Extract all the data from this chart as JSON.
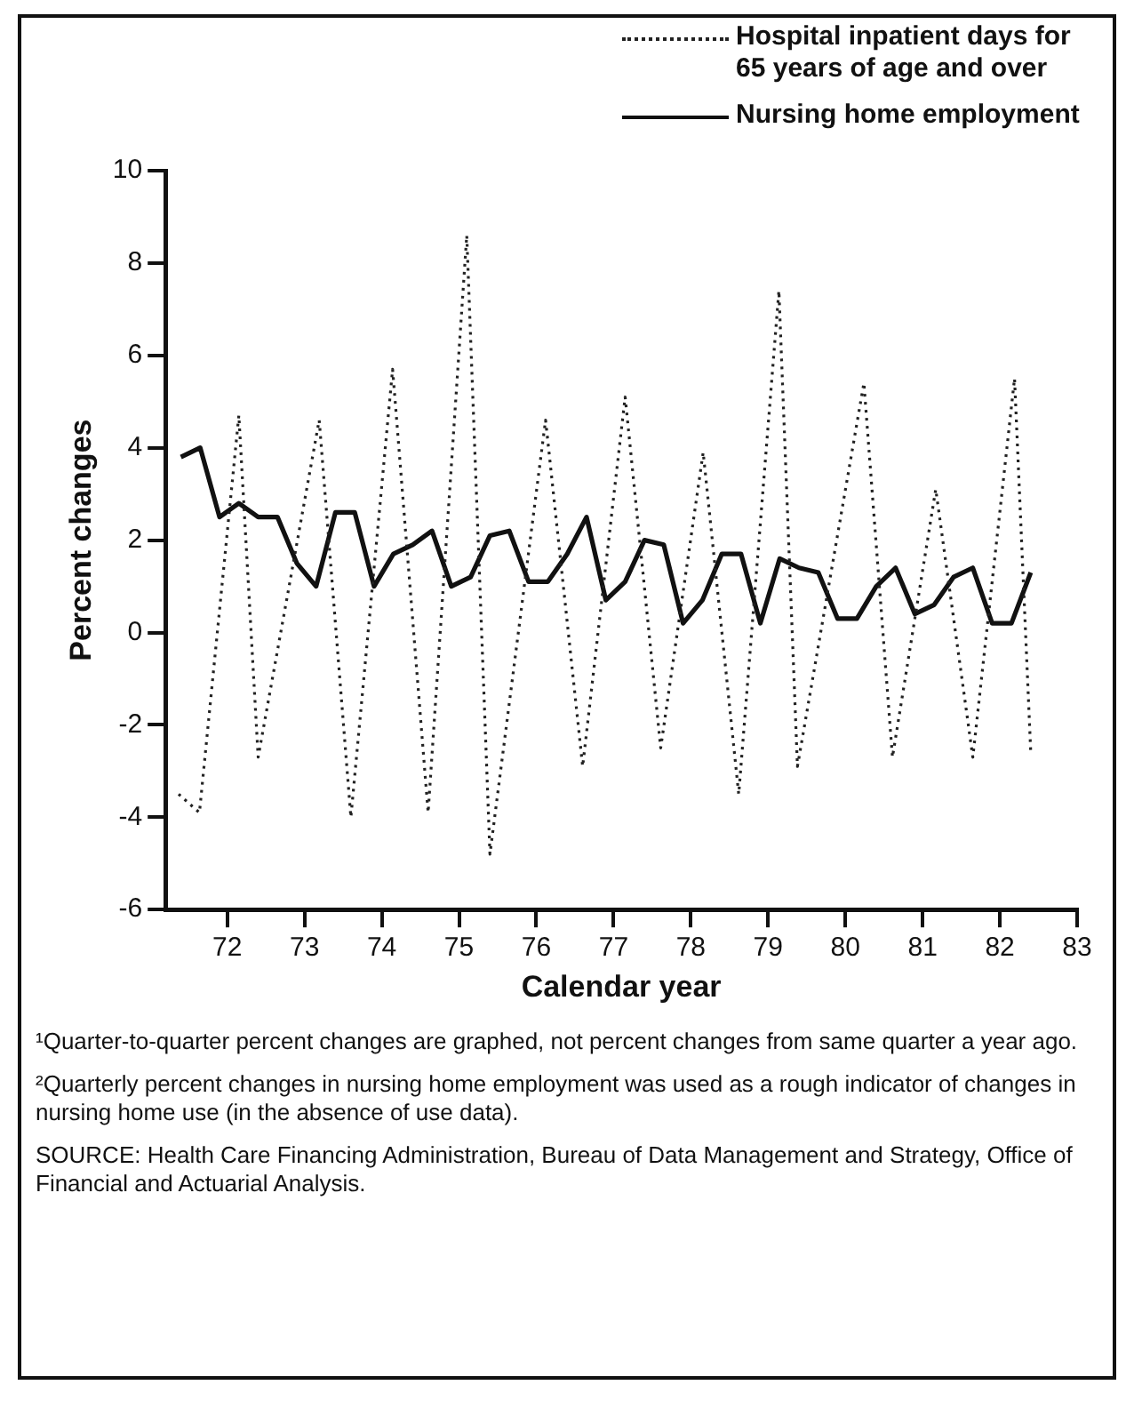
{
  "chart_data": {
    "type": "line",
    "xlabel": "Calendar year",
    "ylabel": "Percent changes",
    "xlim": [
      71.2,
      83
    ],
    "xticks": [
      72,
      73,
      74,
      75,
      76,
      77,
      78,
      79,
      80,
      81,
      82,
      83
    ],
    "ylim": [
      -6,
      10
    ],
    "yticks": [
      -6,
      -4,
      -2,
      0,
      2,
      4,
      6,
      8,
      10
    ],
    "grid": false,
    "legend": "top right",
    "marker": "none",
    "series": [
      {
        "name": "Hospital inpatient days for 65 years of age and over",
        "color": "#222222",
        "line_style": "dotted",
        "x": [
          71.37,
          71.64,
          72.15,
          72.4,
          73.19,
          73.6,
          74.14,
          74.6,
          75.1,
          75.4,
          76.12,
          76.6,
          77.15,
          77.61,
          78.16,
          78.62,
          79.14,
          79.38,
          80.24,
          80.61,
          81.17,
          81.65,
          82.19,
          82.4
        ],
        "values": [
          -3.5,
          -3.9,
          4.7,
          -2.7,
          4.6,
          -4.0,
          5.7,
          -3.9,
          8.6,
          -4.8,
          4.6,
          -2.9,
          5.1,
          -2.5,
          3.9,
          -3.5,
          7.4,
          -2.9,
          5.4,
          -2.7,
          3.1,
          -2.7,
          5.5,
          -2.6
        ]
      },
      {
        "name": "Nursing home employment",
        "color": "#111111",
        "line_style": "solid",
        "x": [
          71.4,
          71.65,
          71.9,
          72.15,
          72.4,
          72.65,
          72.9,
          73.15,
          73.4,
          73.65,
          73.9,
          74.15,
          74.4,
          74.65,
          74.9,
          75.15,
          75.4,
          75.65,
          75.9,
          76.15,
          76.4,
          76.65,
          76.9,
          77.15,
          77.4,
          77.65,
          77.9,
          78.15,
          78.4,
          78.65,
          78.9,
          79.15,
          79.4,
          79.65,
          79.9,
          80.15,
          80.4,
          80.65,
          80.9,
          81.15,
          81.4,
          81.65,
          81.9,
          82.15,
          82.4
        ],
        "values": [
          3.8,
          4.0,
          2.5,
          2.8,
          2.5,
          2.5,
          1.5,
          1.0,
          2.6,
          2.6,
          1.0,
          1.7,
          1.9,
          2.2,
          1.0,
          1.2,
          2.1,
          2.2,
          1.1,
          1.1,
          1.7,
          2.5,
          0.7,
          1.1,
          2.0,
          1.9,
          0.2,
          0.7,
          1.7,
          1.7,
          0.2,
          1.6,
          1.4,
          1.3,
          0.3,
          0.3,
          1.0,
          1.4,
          0.4,
          0.6,
          1.2,
          1.4,
          0.2,
          0.2,
          1.3
        ]
      }
    ],
    "annotations": [
      "¹Quarter-to-quarter percent changes are graphed, not percent changes from same quarter a year ago.",
      "²Quarterly percent changes in nursing home employment was used as a rough indicator of changes in nursing home use (in the absence of use data).",
      "SOURCE: Health Care Financing Administration, Bureau of Data Management and Strategy, Office of Financial and Actuarial Analysis."
    ]
  }
}
